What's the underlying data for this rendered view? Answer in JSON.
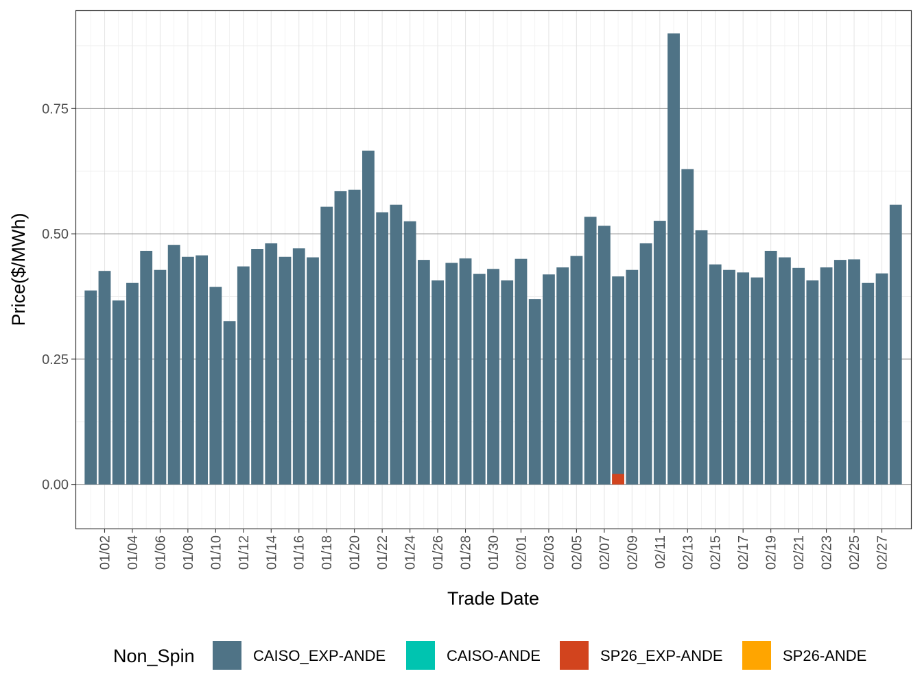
{
  "chart_data": {
    "type": "bar",
    "xlabel": "Trade Date",
    "ylabel": "Price($/MWh)",
    "ylim": [
      -0.088,
      0.946
    ],
    "y_ticks": [
      0.0,
      0.25,
      0.5,
      0.75
    ],
    "y_tick_labels": [
      "0.00",
      "0.25",
      "0.50",
      "0.75"
    ],
    "grid": true,
    "legend": {
      "title": "Non_Spin",
      "position": "bottom",
      "entries": [
        {
          "name": "CAISO_EXP-ANDE",
          "color": "#4F7386"
        },
        {
          "name": "CAISO-ANDE",
          "color": "#00C4B0"
        },
        {
          "name": "SP26_EXP-ANDE",
          "color": "#D2441E"
        },
        {
          "name": "SP26-ANDE",
          "color": "#FFA500"
        }
      ]
    },
    "x_tick_labels": [
      "01/02",
      "01/04",
      "01/06",
      "01/08",
      "01/10",
      "01/12",
      "01/14",
      "01/16",
      "01/18",
      "01/20",
      "01/22",
      "01/24",
      "01/26",
      "01/28",
      "01/30",
      "02/01",
      "02/03",
      "02/05",
      "02/07",
      "02/09",
      "02/11",
      "02/13",
      "02/15",
      "02/17",
      "02/19",
      "02/21",
      "02/23",
      "02/25",
      "02/27"
    ],
    "categories": [
      "01/01",
      "01/02",
      "01/03",
      "01/04",
      "01/05",
      "01/06",
      "01/07",
      "01/08",
      "01/09",
      "01/10",
      "01/11",
      "01/12",
      "01/13",
      "01/14",
      "01/15",
      "01/16",
      "01/17",
      "01/18",
      "01/19",
      "01/20",
      "01/21",
      "01/22",
      "01/23",
      "01/24",
      "01/25",
      "01/26",
      "01/27",
      "01/28",
      "01/29",
      "01/30",
      "01/31",
      "02/01",
      "02/02",
      "02/03",
      "02/04",
      "02/05",
      "02/06",
      "02/07",
      "02/08",
      "02/09",
      "02/10",
      "02/11",
      "02/12",
      "02/13",
      "02/14",
      "02/15",
      "02/16",
      "02/17",
      "02/18",
      "02/19",
      "02/20",
      "02/21",
      "02/22",
      "02/23",
      "02/24",
      "02/25",
      "02/26",
      "02/27",
      "02/28"
    ],
    "series": [
      {
        "name": "CAISO_EXP-ANDE",
        "color": "#4F7386",
        "values": [
          0.387,
          0.426,
          0.367,
          0.402,
          0.466,
          0.428,
          0.478,
          0.454,
          0.457,
          0.394,
          0.326,
          0.435,
          0.47,
          0.481,
          0.454,
          0.471,
          0.453,
          0.554,
          0.585,
          0.588,
          0.666,
          0.543,
          0.558,
          0.525,
          0.448,
          0.407,
          0.442,
          0.451,
          0.42,
          0.43,
          0.407,
          0.45,
          0.37,
          0.419,
          0.433,
          0.456,
          0.534,
          0.516,
          0.415,
          0.428,
          0.481,
          0.526,
          0.9,
          0.629,
          0.507,
          0.439,
          0.428,
          0.423,
          0.413,
          0.466,
          0.453,
          0.432,
          0.407,
          0.433,
          0.448,
          0.449,
          0.402,
          0.421,
          0.558
        ]
      },
      {
        "name": "CAISO-ANDE",
        "color": "#00C4B0",
        "values": [
          0,
          0,
          0,
          0,
          0,
          0,
          0,
          0,
          0,
          0,
          0,
          0,
          0,
          0,
          0,
          0,
          0,
          0,
          0,
          0,
          0,
          0,
          0,
          0,
          0,
          0,
          0,
          0,
          0,
          0,
          0,
          0,
          0,
          0,
          0,
          0,
          0,
          0,
          0,
          0,
          0,
          0,
          0,
          0,
          0,
          0,
          0,
          0,
          0,
          0,
          0,
          0,
          0,
          0,
          0,
          0,
          0,
          0,
          0
        ]
      },
      {
        "name": "SP26_EXP-ANDE",
        "color": "#D2441E",
        "values": [
          0,
          0,
          0,
          0,
          0,
          0,
          0,
          0,
          0,
          0,
          0,
          0,
          0,
          0,
          0,
          0,
          0,
          0,
          0,
          0,
          0,
          0,
          0,
          0,
          0,
          0,
          0,
          0,
          0,
          0,
          0,
          0,
          0,
          0,
          0,
          0,
          0,
          0,
          0.021,
          0,
          0,
          0,
          0,
          0,
          0,
          0,
          0,
          0,
          0,
          0,
          0,
          0,
          0,
          0,
          0,
          0,
          0,
          0,
          0
        ]
      },
      {
        "name": "SP26-ANDE",
        "color": "#FFA500",
        "values": [
          0,
          0,
          0,
          0,
          0,
          0,
          0,
          0,
          0,
          0,
          0,
          0,
          0,
          0,
          0,
          0,
          0,
          0,
          0,
          0,
          0,
          0,
          0,
          0,
          0,
          0,
          0,
          0,
          0,
          0,
          0,
          0,
          0,
          0,
          0,
          0,
          0,
          0,
          0,
          0,
          0,
          0,
          0,
          0,
          0,
          0,
          0,
          0,
          0,
          0,
          0,
          0,
          0,
          0,
          0,
          0,
          0,
          0,
          0
        ]
      }
    ]
  }
}
